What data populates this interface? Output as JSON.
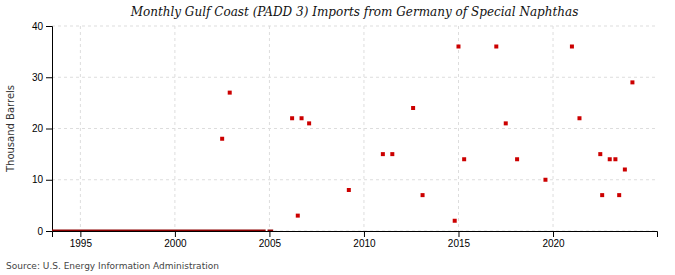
{
  "chart_data": {
    "type": "scatter",
    "title": "Monthly Gulf Coast (PADD 3) Imports from Germany of Special Naphthas",
    "ylabel": "Thousand Barrels",
    "source": "Source: U.S. Energy Information Administration",
    "xlim": [
      1993.5,
      2025.5
    ],
    "ylim": [
      0,
      40
    ],
    "xticks": [
      1995,
      2000,
      2005,
      2010,
      2015,
      2020
    ],
    "yticks": [
      0,
      10,
      20,
      30,
      40
    ],
    "grid": true,
    "series": [
      {
        "type": "line",
        "color": "#8b0000",
        "x": [
          1993.5,
          2004.8
        ],
        "values": [
          0,
          0
        ]
      },
      {
        "type": "line",
        "color": "#8b0000",
        "x": [
          2004.9,
          2005.2
        ],
        "values": [
          0,
          0
        ]
      },
      {
        "type": "scatter",
        "color": "#cc0000",
        "marker": "square",
        "x": [
          2002.5,
          2002.9,
          2006.2,
          2006.7,
          2006.5,
          2007.1,
          2009.2,
          2011.0,
          2011.5,
          2012.6,
          2013.1,
          2014.8,
          2015.0,
          2015.3,
          2017.0,
          2017.5,
          2018.1,
          2019.6,
          2021.0,
          2021.4,
          2022.5,
          2022.6,
          2023.0,
          2023.3,
          2023.5,
          2023.8,
          2024.2
        ],
        "values": [
          18,
          27,
          22,
          22,
          3,
          21,
          8,
          15,
          15,
          24,
          7,
          2,
          36,
          14,
          36,
          21,
          14,
          10,
          36,
          22,
          15,
          7,
          14,
          14,
          7,
          12,
          29
        ]
      }
    ]
  }
}
